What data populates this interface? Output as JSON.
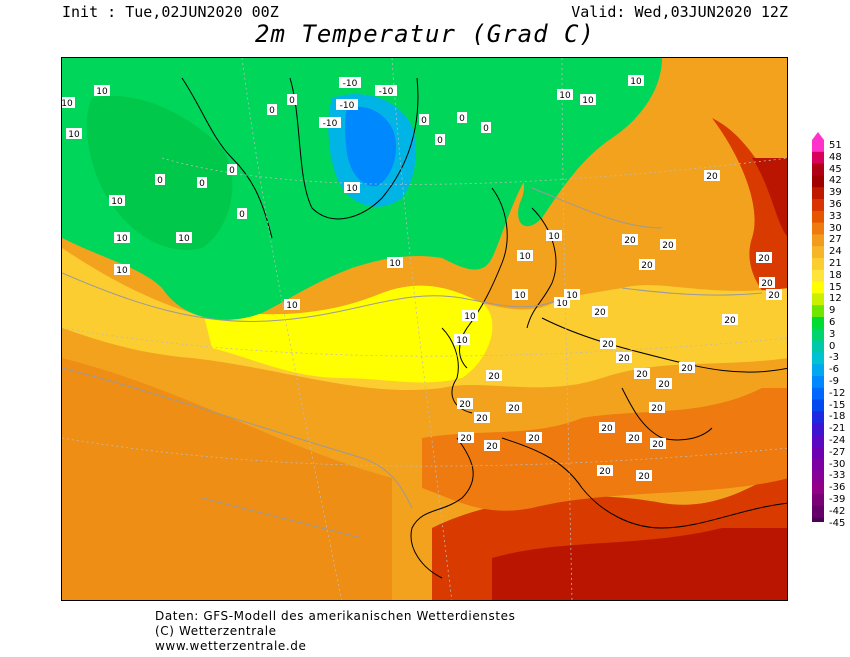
{
  "header": {
    "init": "Init : Tue,02JUN2020 00Z",
    "valid": "Valid: Wed,03JUN2020 12Z",
    "title": "2m Temperatur (Grad C)"
  },
  "colorscale": {
    "labels": [
      "51",
      "48",
      "45",
      "42",
      "39",
      "36",
      "33",
      "30",
      "27",
      "24",
      "21",
      "18",
      "15",
      "12",
      "9",
      "6",
      "3",
      "0",
      "-3",
      "-6",
      "-9",
      "-12",
      "-15",
      "-18",
      "-21",
      "-24",
      "-27",
      "-30",
      "-33",
      "-36",
      "-39",
      "-42",
      "-45"
    ],
    "colors": [
      "#ff33cc",
      "#d9005b",
      "#b00015",
      "#a00000",
      "#bf1a00",
      "#d83300",
      "#e65500",
      "#ef7a10",
      "#f29c1e",
      "#f7b52a",
      "#fbcd30",
      "#ffe53a",
      "#ffff00",
      "#c8f000",
      "#6ee600",
      "#00dc32",
      "#00d46e",
      "#00c8a8",
      "#00c2d2",
      "#00a8ee",
      "#0088ff",
      "#0068ff",
      "#0048f0",
      "#1e28e0",
      "#3c14d2",
      "#5a08c4",
      "#6e00b4",
      "#7c00a4",
      "#880096",
      "#920088",
      "#7a0078",
      "#640068",
      "#4e0058"
    ]
  },
  "isotherm_labels": [
    "10",
    "10",
    "10",
    "10",
    "10",
    "10",
    "10",
    "10",
    "10",
    "10",
    "10",
    "10",
    "10",
    "10",
    "10",
    "10",
    "10",
    "10",
    "10",
    "10",
    "0",
    "0",
    "0",
    "0",
    "0",
    "0",
    "0",
    "0",
    "0",
    "0",
    "-10",
    "-10",
    "-10",
    "-10",
    "20",
    "20",
    "20",
    "20",
    "20",
    "20",
    "20",
    "20",
    "20",
    "20",
    "20",
    "20",
    "20",
    "20",
    "20",
    "20",
    "20",
    "20",
    "20",
    "20",
    "20",
    "20",
    "20",
    "20",
    "20",
    "20",
    "20"
  ],
  "footer": {
    "line1": "Daten: GFS-Modell des amerikanischen Wetterdienstes",
    "line2": "(C) Wetterzentrale",
    "line3": "www.wetterzentrale.de"
  }
}
